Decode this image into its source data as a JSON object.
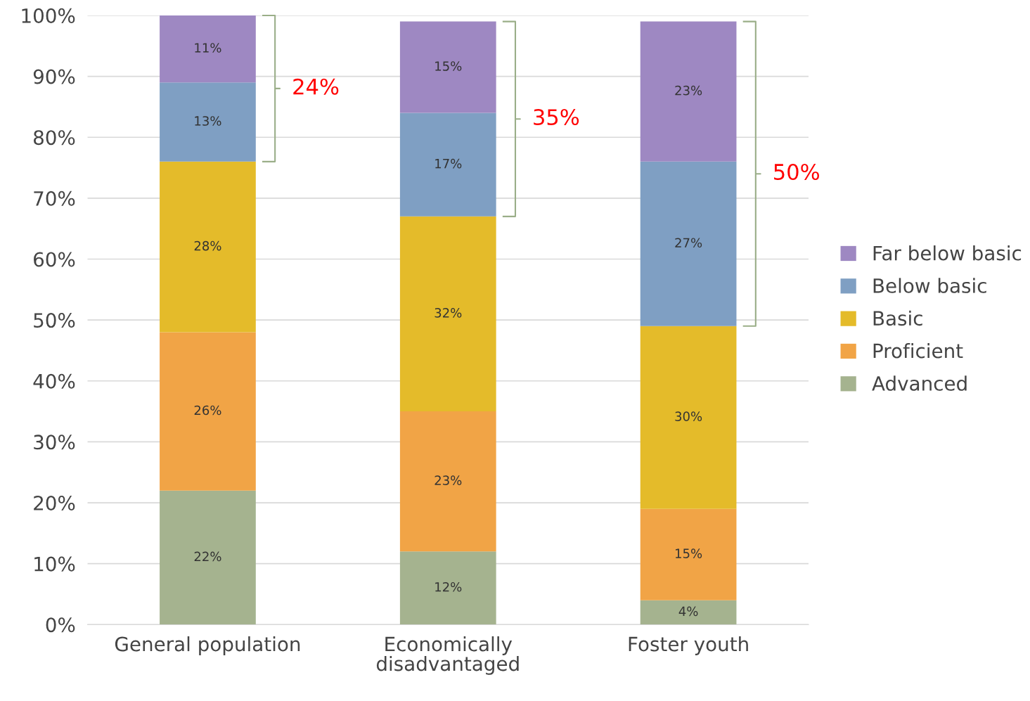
{
  "chart_data": {
    "type": "bar",
    "stacked": true,
    "categories": [
      "General population",
      "Economically disadvantaged",
      "Foster youth"
    ],
    "series": [
      {
        "name": "Advanced",
        "color": "#a5b38f",
        "values": [
          22,
          12,
          4
        ],
        "value_labels": [
          "22%",
          "12%",
          "4%"
        ]
      },
      {
        "name": "Proficient",
        "color": "#f1a446",
        "values": [
          26,
          23,
          15
        ],
        "value_labels": [
          "26%",
          "23%",
          "15%"
        ]
      },
      {
        "name": "Basic",
        "color": "#e4bb2a",
        "values": [
          28,
          32,
          30
        ],
        "value_labels": [
          "28%",
          "32%",
          "30%"
        ]
      },
      {
        "name": "Below basic",
        "color": "#7f9fc3",
        "values": [
          13,
          17,
          27
        ],
        "value_labels": [
          "13%",
          "17%",
          "27%"
        ]
      },
      {
        "name": "Far below basic",
        "color": "#9e88c2",
        "values": [
          11,
          15,
          23
        ],
        "value_labels": [
          "11%",
          "15%",
          "23%"
        ]
      }
    ],
    "ylim": [
      0,
      100
    ],
    "yticks": [
      {
        "value": 0,
        "label": "0%"
      },
      {
        "value": 10,
        "label": "10%"
      },
      {
        "value": 20,
        "label": "20%"
      },
      {
        "value": 30,
        "label": "30%"
      },
      {
        "value": 40,
        "label": "40%"
      },
      {
        "value": 50,
        "label": "50%"
      },
      {
        "value": 60,
        "label": "60%"
      },
      {
        "value": 70,
        "label": "70%"
      },
      {
        "value": 80,
        "label": "80%"
      },
      {
        "value": 90,
        "label": "90%"
      },
      {
        "value": 100,
        "label": "100%"
      }
    ],
    "annotations": [
      "24%",
      "35%",
      "50%"
    ],
    "grid": "y",
    "legend": "right"
  }
}
